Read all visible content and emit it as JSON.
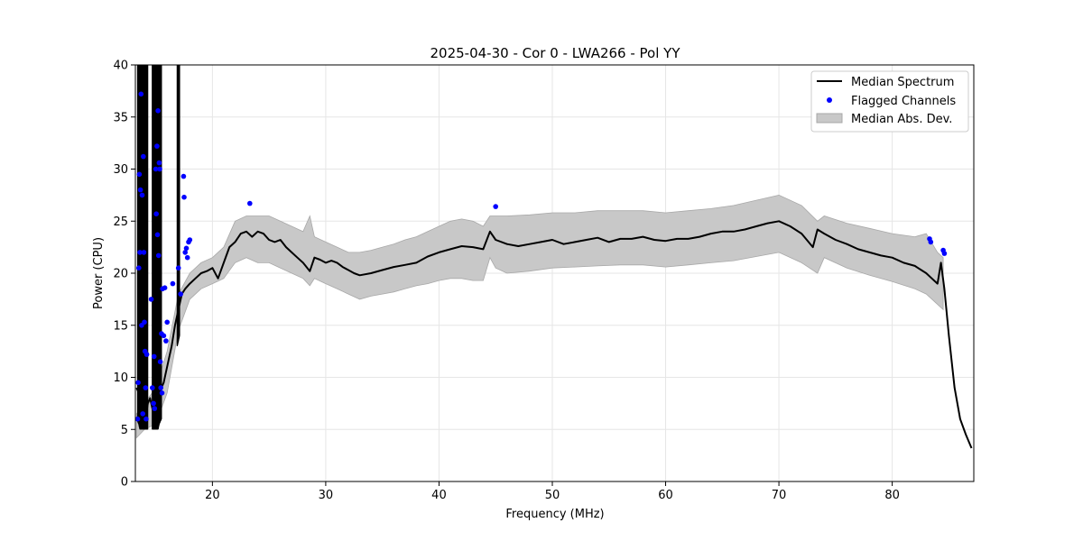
{
  "chart_data": {
    "type": "line",
    "title": "2025-04-30 - Cor 0 - LWA266 - Pol YY",
    "xlabel": "Frequency (MHz)",
    "ylabel": "Power (CPU)",
    "xlim": [
      13.2,
      87.2
    ],
    "ylim": [
      0,
      40
    ],
    "xticks": [
      20,
      30,
      40,
      50,
      60,
      70,
      80
    ],
    "yticks": [
      0,
      5,
      10,
      15,
      20,
      25,
      30,
      35,
      40
    ],
    "grid": true,
    "legend_position": "top-right",
    "colors": {
      "median": "#000000",
      "flagged": "#0000ff",
      "mad": "#c8c8c8",
      "mad_edge": "#a8a8a8"
    },
    "legend": [
      {
        "label": "Median Spectrum",
        "kind": "line"
      },
      {
        "label": "Flagged Channels",
        "kind": "marker"
      },
      {
        "label": "Median Abs. Dev.",
        "kind": "patch"
      }
    ],
    "series": [
      {
        "name": "Median Spectrum",
        "x": [
          13.3,
          13.5,
          13.7,
          13.9,
          14.1,
          14.3,
          14.5,
          14.7,
          14.9,
          15.1,
          15.3,
          15.5,
          15.7,
          15.9,
          16.1,
          16.4,
          16.7,
          17.0,
          17.3,
          17.6,
          18.0,
          18.5,
          19.0,
          19.5,
          20.0,
          20.5,
          21.0,
          21.5,
          22.0,
          22.5,
          23.0,
          23.5,
          24.0,
          24.5,
          25.0,
          25.5,
          26.0,
          26.5,
          27.0,
          27.5,
          28.0,
          28.6,
          29.0,
          29.5,
          30.0,
          30.5,
          31.0,
          31.5,
          32.0,
          32.5,
          33.0,
          34.0,
          35.0,
          36.0,
          37.0,
          38.0,
          39.0,
          40.0,
          41.0,
          42.0,
          43.0,
          43.9,
          44.5,
          45.0,
          46.0,
          47.0,
          48.0,
          49.0,
          50.0,
          51.0,
          52.0,
          53.0,
          54.0,
          55.0,
          56.0,
          57.0,
          58.0,
          59.0,
          60.0,
          61.0,
          62.0,
          63.0,
          64.0,
          65.0,
          66.0,
          67.0,
          68.0,
          69.0,
          70.0,
          71.0,
          72.0,
          73.0,
          73.4,
          74.0,
          75.0,
          76.0,
          77.0,
          78.0,
          79.0,
          80.0,
          81.0,
          82.0,
          83.0,
          83.5,
          84.0,
          84.3,
          84.6,
          85.0,
          85.5,
          86.0,
          86.5,
          87.0
        ],
        "values": [
          9.0,
          8.5,
          7.5,
          6.5,
          6.0,
          7.5,
          8.0,
          7.0,
          6.5,
          7.5,
          8.5,
          9.0,
          9.5,
          10.5,
          11.5,
          13.0,
          15.0,
          16.5,
          18.0,
          18.5,
          19.0,
          19.5,
          20.0,
          20.2,
          20.5,
          19.5,
          21.0,
          22.5,
          23.0,
          23.8,
          24.0,
          23.5,
          24.0,
          23.8,
          23.2,
          23.0,
          23.2,
          22.5,
          22.0,
          21.5,
          21.0,
          20.2,
          21.5,
          21.3,
          21.0,
          21.2,
          21.0,
          20.6,
          20.3,
          20.0,
          19.8,
          20.0,
          20.3,
          20.6,
          20.8,
          21.0,
          21.6,
          22.0,
          22.3,
          22.6,
          22.5,
          22.3,
          24.0,
          23.2,
          22.8,
          22.6,
          22.8,
          23.0,
          23.2,
          22.8,
          23.0,
          23.2,
          23.4,
          23.0,
          23.3,
          23.3,
          23.5,
          23.2,
          23.1,
          23.3,
          23.3,
          23.5,
          23.8,
          24.0,
          24.0,
          24.2,
          24.5,
          24.8,
          25.0,
          24.5,
          23.8,
          22.5,
          24.2,
          23.8,
          23.2,
          22.8,
          22.3,
          22.0,
          21.7,
          21.5,
          21.0,
          20.7,
          20.0,
          19.5,
          19.0,
          21.0,
          18.5,
          14.0,
          9.0,
          6.0,
          4.5,
          3.2
        ]
      },
      {
        "name": "Median Abs. Dev.",
        "x": [
          13.3,
          14.0,
          15.0,
          16.0,
          17.0,
          18.0,
          19.0,
          20.0,
          21.0,
          22.0,
          23.0,
          24.0,
          25.0,
          26.0,
          27.0,
          28.0,
          28.6,
          29.0,
          30.0,
          31.0,
          32.0,
          33.0,
          34.0,
          35.0,
          36.0,
          37.0,
          38.0,
          39.0,
          40.0,
          41.0,
          42.0,
          43.0,
          43.9,
          44.5,
          45.0,
          46.0,
          48.0,
          50.0,
          52.0,
          54.0,
          56.0,
          58.0,
          60.0,
          62.0,
          64.0,
          66.0,
          68.0,
          70.0,
          72.0,
          73.4,
          74.0,
          76.0,
          78.0,
          80.0,
          82.0,
          83.0,
          84.0,
          84.5
        ],
        "lower": [
          4.2,
          5.0,
          5.5,
          8.5,
          14.5,
          17.5,
          18.5,
          19.0,
          19.5,
          21.0,
          21.5,
          21.0,
          21.0,
          20.5,
          20.0,
          19.5,
          18.8,
          19.5,
          19.0,
          18.5,
          18.0,
          17.5,
          17.8,
          18.0,
          18.2,
          18.5,
          18.8,
          19.0,
          19.3,
          19.5,
          19.5,
          19.3,
          19.3,
          21.5,
          20.5,
          20.0,
          20.2,
          20.5,
          20.6,
          20.7,
          20.8,
          20.8,
          20.6,
          20.8,
          21.0,
          21.2,
          21.6,
          22.0,
          21.0,
          20.0,
          21.5,
          20.5,
          19.8,
          19.2,
          18.5,
          18.0,
          17.0,
          16.5
        ],
        "upper": [
          6.5,
          7.5,
          9.0,
          12.5,
          18.0,
          20.0,
          21.0,
          21.5,
          22.5,
          25.0,
          25.5,
          25.5,
          25.5,
          25.0,
          24.5,
          24.0,
          25.5,
          23.5,
          23.0,
          22.5,
          22.0,
          22.0,
          22.2,
          22.5,
          22.8,
          23.2,
          23.5,
          24.0,
          24.5,
          25.0,
          25.2,
          25.0,
          24.5,
          25.5,
          25.5,
          25.5,
          25.6,
          25.8,
          25.8,
          26.0,
          26.0,
          26.0,
          25.8,
          26.0,
          26.2,
          26.5,
          27.0,
          27.5,
          26.5,
          25.0,
          25.5,
          24.8,
          24.3,
          23.8,
          23.5,
          23.8,
          22.0,
          21.5
        ]
      },
      {
        "name": "Flagged Channels",
        "points": [
          [
            13.4,
            6.0
          ],
          [
            13.45,
            9.5
          ],
          [
            13.5,
            20.5
          ],
          [
            13.55,
            29.5
          ],
          [
            13.6,
            22.0
          ],
          [
            13.65,
            28.0
          ],
          [
            13.7,
            37.2
          ],
          [
            13.75,
            15.0
          ],
          [
            13.8,
            27.5
          ],
          [
            13.85,
            6.5
          ],
          [
            13.9,
            31.2
          ],
          [
            13.95,
            22.0
          ],
          [
            14.0,
            15.3
          ],
          [
            14.05,
            12.5
          ],
          [
            14.1,
            9.0
          ],
          [
            14.15,
            6.0
          ],
          [
            14.2,
            12.2
          ],
          [
            14.6,
            17.5
          ],
          [
            14.7,
            9.0
          ],
          [
            14.8,
            7.5
          ],
          [
            14.85,
            12.0
          ],
          [
            14.9,
            7.0
          ],
          [
            15.0,
            30.0
          ],
          [
            15.05,
            25.7
          ],
          [
            15.1,
            32.2
          ],
          [
            15.15,
            23.7
          ],
          [
            15.2,
            35.6
          ],
          [
            15.25,
            21.7
          ],
          [
            15.3,
            30.6
          ],
          [
            15.35,
            30.0
          ],
          [
            15.4,
            11.5
          ],
          [
            15.45,
            9.0
          ],
          [
            15.5,
            14.2
          ],
          [
            15.55,
            8.5
          ],
          [
            15.6,
            18.5
          ],
          [
            15.7,
            14.0
          ],
          [
            15.8,
            18.6
          ],
          [
            15.9,
            13.5
          ],
          [
            16.0,
            15.3
          ],
          [
            16.5,
            19.0
          ],
          [
            17.0,
            20.5
          ],
          [
            17.2,
            18.0
          ],
          [
            17.45,
            29.3
          ],
          [
            17.5,
            27.3
          ],
          [
            17.6,
            22.0
          ],
          [
            17.7,
            22.4
          ],
          [
            17.8,
            21.5
          ],
          [
            17.9,
            23.0
          ],
          [
            18.0,
            23.2
          ],
          [
            23.3,
            26.7
          ],
          [
            45.0,
            26.4
          ],
          [
            83.3,
            23.3
          ],
          [
            83.4,
            23.0
          ],
          [
            84.5,
            22.2
          ],
          [
            84.6,
            21.9
          ]
        ]
      }
    ]
  }
}
